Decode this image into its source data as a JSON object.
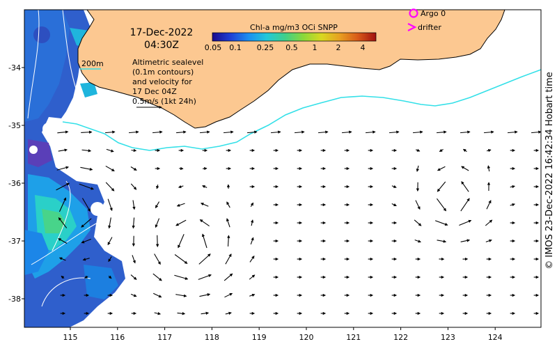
{
  "map": {
    "date_line": "17-Dec-2022",
    "time_line": "04:30Z",
    "info_lines": [
      "Altimetric sealevel",
      "(0.1m contours)",
      "and velocity for",
      "17 Dec 04Z",
      "0.5m/s (1kt 24h)"
    ],
    "isobath_label": "200m",
    "colorbar_title": "Chl-a mg/m3 OCi SNPP",
    "colorbar_ticks": [
      "0.05",
      "0.1",
      "0.25",
      "0.5",
      "1",
      "2",
      "4"
    ],
    "colorbar_colors": [
      "#1a0a8c",
      "#1f3fd6",
      "#1c8ff0",
      "#22c8d8",
      "#3fd08a",
      "#8ad83a",
      "#d8d820",
      "#e8a020",
      "#d85a18",
      "#a01010"
    ],
    "legend": [
      {
        "label": "Argo 0",
        "color": "#ff00ff",
        "symbol": "circle"
      },
      {
        "label": "drifter",
        "color": "#ff00ff",
        "symbol": "chevron"
      }
    ],
    "x_ticks": [
      "115",
      "116",
      "117",
      "118",
      "119",
      "120",
      "121",
      "122",
      "123",
      "124"
    ],
    "y_ticks": [
      "-34",
      "-35",
      "-36",
      "-37",
      "-38"
    ],
    "credit": "© IMOS 23-Dec-2022 16:42:34 Hobart time",
    "colors": {
      "land": "#fcc891",
      "sea_blank": "#ffffff",
      "isobath": "#33e0e8",
      "contour": "#ffffff",
      "arrow": "#000000"
    }
  }
}
